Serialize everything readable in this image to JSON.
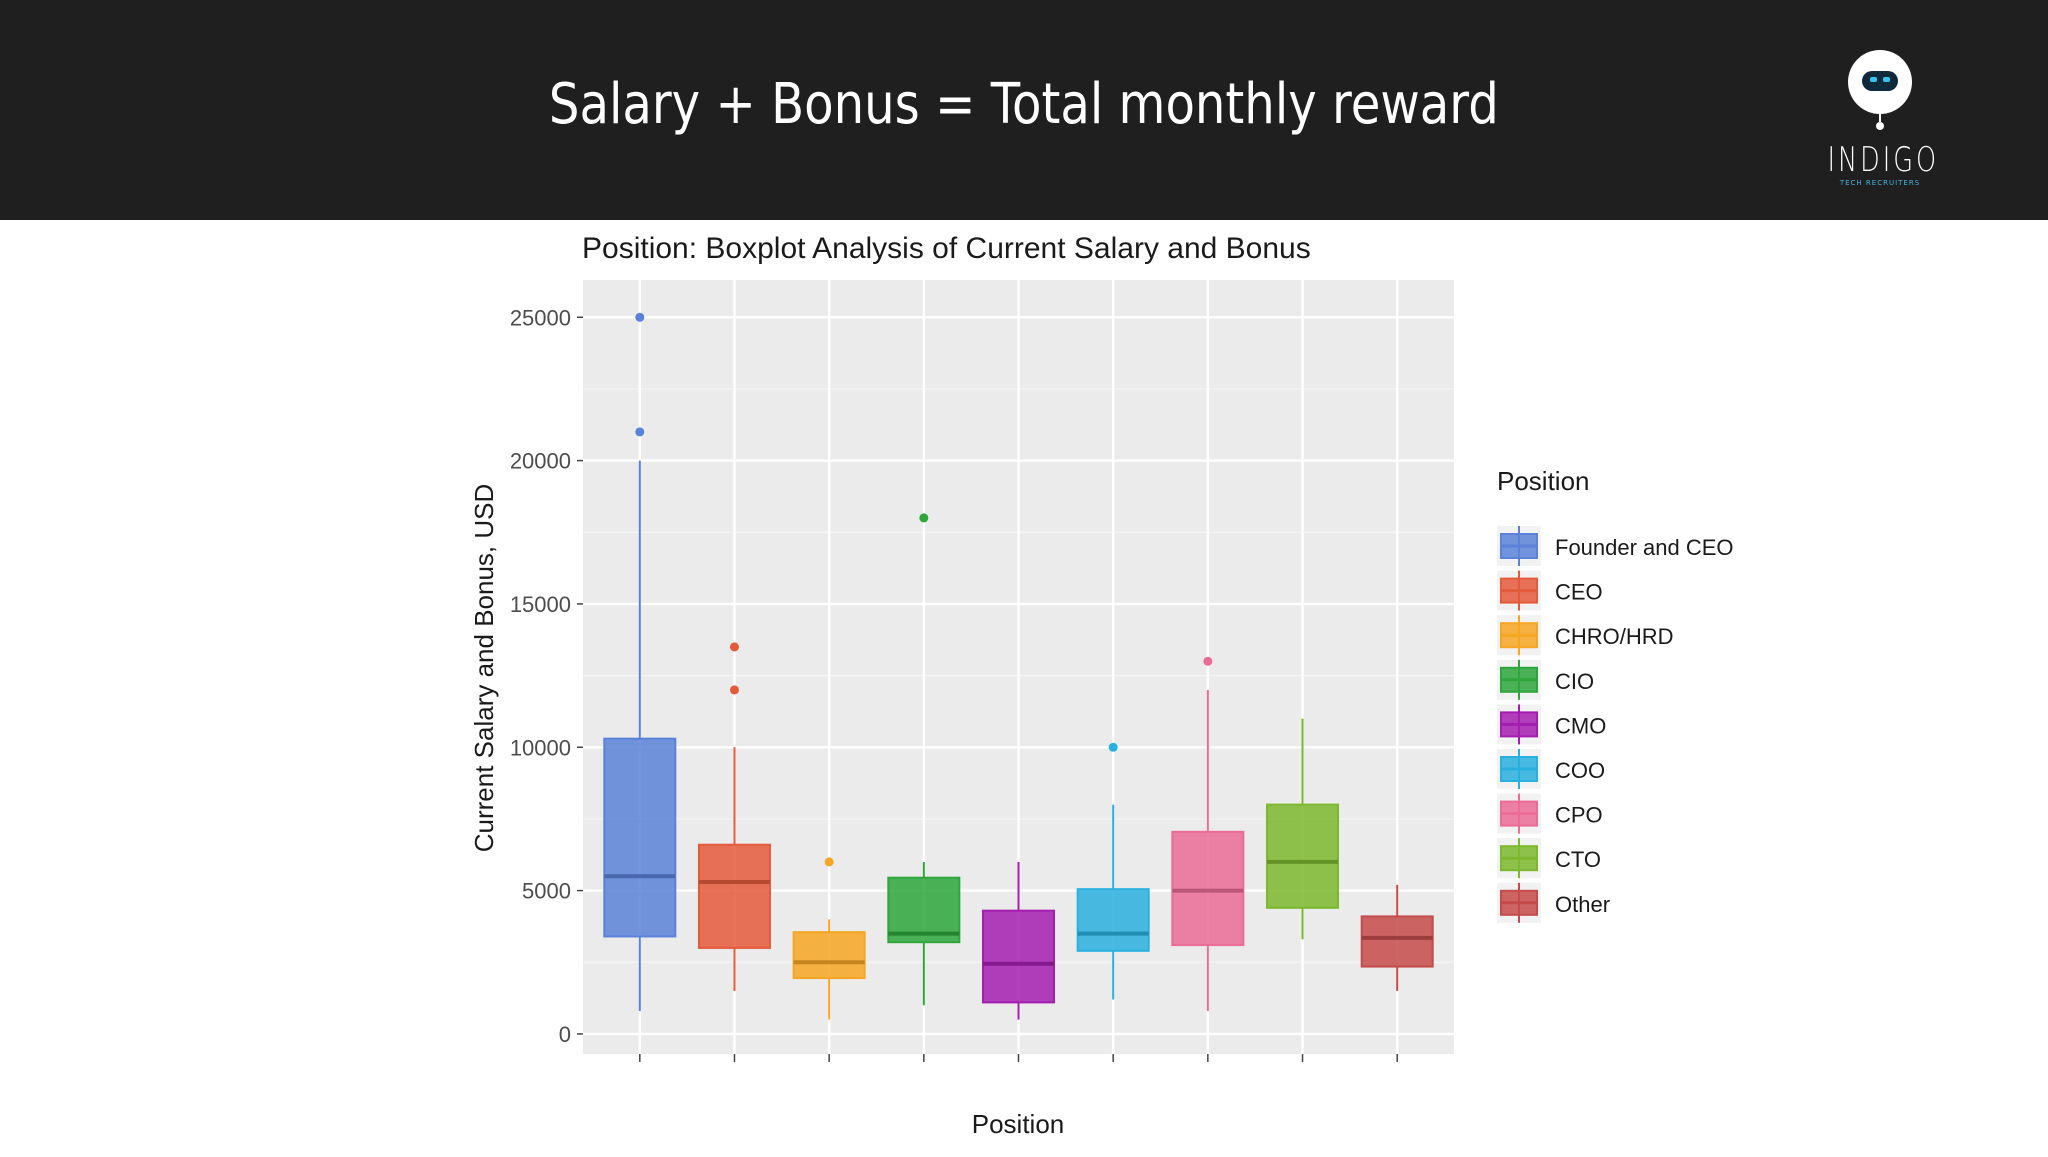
{
  "header": {
    "title": "Salary + Bonus = Total monthly reward",
    "logo_text": "INDIGO",
    "logo_sub": "TECH RECRUITERS"
  },
  "colors": {
    "header_bg": "#201f20",
    "panel_bg": "#ebebeb",
    "gridline": "#ffffff"
  },
  "chart_data": {
    "type": "boxplot",
    "title": "Position: Boxplot Analysis of Current Salary and Bonus",
    "xlabel": "Position",
    "ylabel": "Current Salary and Bonus, USD",
    "ylim": [
      -700,
      26300
    ],
    "yticks": [
      0,
      5000,
      10000,
      15000,
      20000,
      25000
    ],
    "grid": true,
    "legend_title": "Position",
    "legend_position": "right",
    "categories": [
      "Founder and CEO",
      "CEO",
      "CHRO/HRD",
      "CIO",
      "CMO",
      "COO",
      "CPO",
      "CTO",
      "Other"
    ],
    "boxes": [
      {
        "name": "Founder and CEO",
        "color": "#5b82d8",
        "min": 800,
        "q1": 3400,
        "median": 5500,
        "q3": 10300,
        "max": 20000,
        "outliers": [
          21000,
          25000
        ]
      },
      {
        "name": "CEO",
        "color": "#e45b3c",
        "min": 1500,
        "q1": 3000,
        "median": 5300,
        "q3": 6600,
        "max": 10000,
        "outliers": [
          12000,
          13500
        ]
      },
      {
        "name": "CHRO/HRD",
        "color": "#f6a623",
        "min": 500,
        "q1": 1950,
        "median": 2500,
        "q3": 3550,
        "max": 4000,
        "outliers": [
          6000
        ]
      },
      {
        "name": "CIO",
        "color": "#2ea63c",
        "min": 1000,
        "q1": 3200,
        "median": 3500,
        "q3": 5450,
        "max": 6000,
        "outliers": [
          18000
        ]
      },
      {
        "name": "CMO",
        "color": "#a41fb0",
        "min": 500,
        "q1": 1100,
        "median": 2450,
        "q3": 4300,
        "max": 6000,
        "outliers": []
      },
      {
        "name": "COO",
        "color": "#2ab0df",
        "min": 1200,
        "q1": 2900,
        "median": 3500,
        "q3": 5050,
        "max": 8000,
        "outliers": [
          10000
        ]
      },
      {
        "name": "CPO",
        "color": "#ea6c97",
        "min": 800,
        "q1": 3100,
        "median": 5000,
        "q3": 7050,
        "max": 12000,
        "outliers": [
          13000
        ]
      },
      {
        "name": "CTO",
        "color": "#7cb82e",
        "min": 3300,
        "q1": 4400,
        "median": 6000,
        "q3": 8000,
        "max": 11000,
        "outliers": []
      },
      {
        "name": "Other",
        "color": "#c54b4b",
        "min": 1500,
        "q1": 2350,
        "median": 3350,
        "q3": 4100,
        "max": 5200,
        "outliers": []
      }
    ]
  }
}
